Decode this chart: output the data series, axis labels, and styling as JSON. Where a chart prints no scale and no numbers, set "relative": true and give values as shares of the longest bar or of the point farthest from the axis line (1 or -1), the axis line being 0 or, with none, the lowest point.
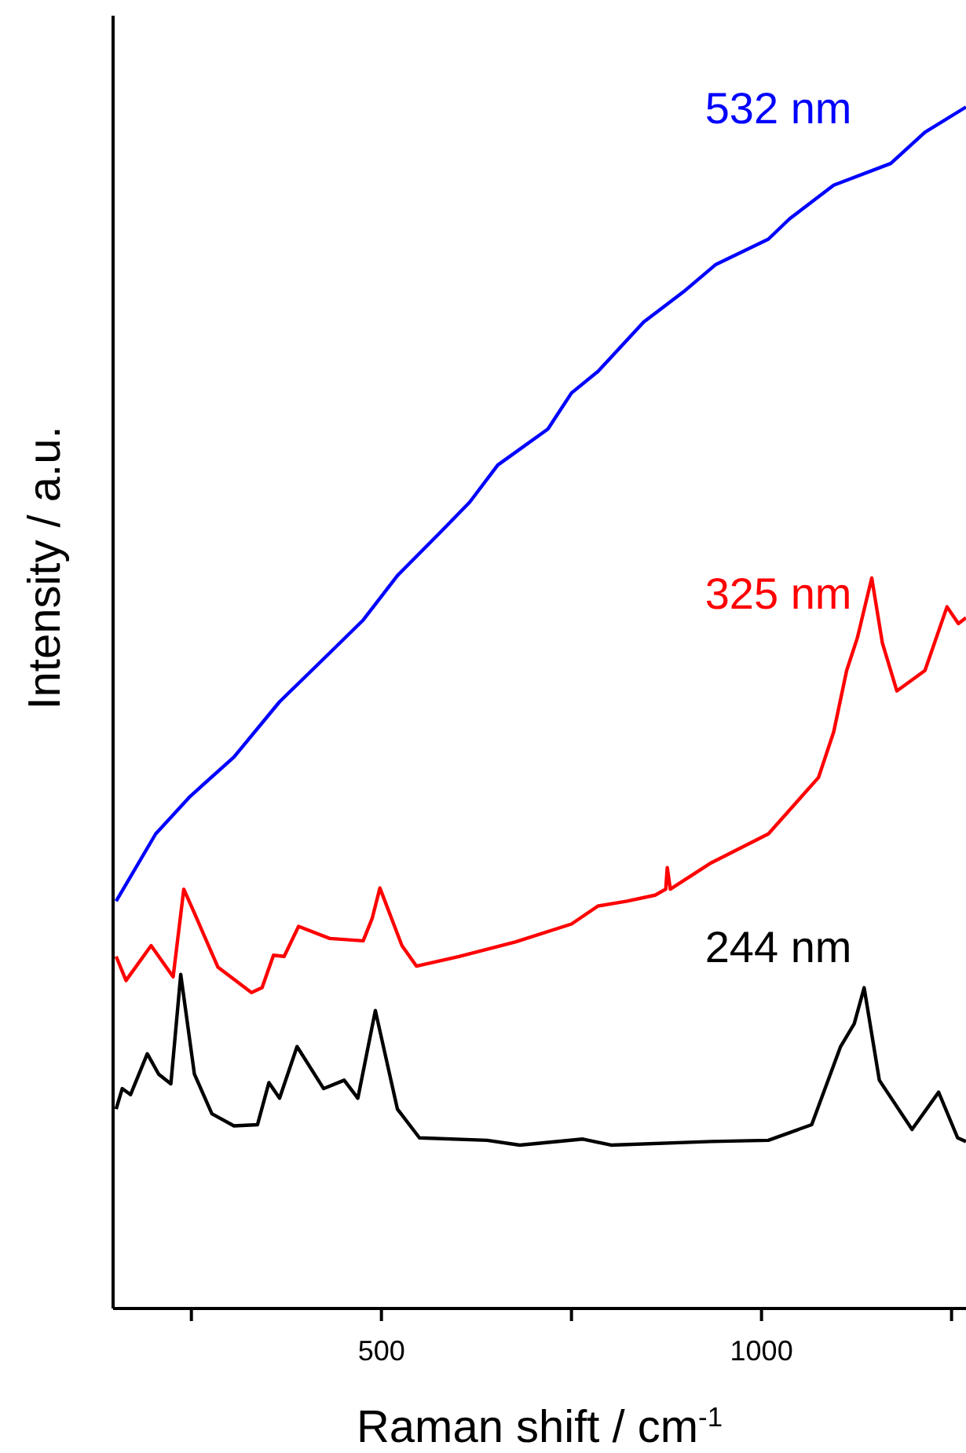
{
  "chart_data": {
    "type": "line",
    "relative": true,
    "xlabel": "Raman shift / cm$^{-1}$",
    "ylabel": "Intensity / a.u.",
    "xlim": [
      147,
      1269
    ],
    "xticks": [
      {
        "value": 250,
        "label": null
      },
      500,
      {
        "value": 750,
        "label": null
      },
      1000,
      {
        "value": 1250,
        "label": null
      }
    ],
    "series": [
      {
        "name": "532 nm",
        "color": "#0000ff",
        "x": [
          151,
          203,
          248,
          306,
          366,
          418,
          476,
          521,
          579,
          616,
          653,
          719,
          750,
          785,
          845,
          897,
          940,
          1009,
          1037,
          1095,
          1170,
          1215,
          1269
        ],
        "values": [
          0.339,
          0.395,
          0.426,
          0.459,
          0.505,
          0.537,
          0.573,
          0.61,
          0.647,
          0.671,
          0.702,
          0.732,
          0.762,
          0.78,
          0.821,
          0.846,
          0.869,
          0.89,
          0.907,
          0.935,
          0.953,
          0.979,
          1.0
        ]
      },
      {
        "name": "325 nm",
        "color": "#ff0000",
        "x": [
          151,
          164,
          197,
          226,
          240,
          254,
          285,
          329,
          343,
          358,
          372,
          391,
          432,
          476,
          488,
          498,
          527,
          546,
          602,
          676,
          750,
          785,
          823,
          860,
          874,
          876,
          880,
          934,
          1009,
          1075,
          1095,
          1112,
          1126,
          1145,
          1159,
          1178,
          1215,
          1244,
          1259,
          1269
        ],
        "values": [
          0.293,
          0.273,
          0.302,
          0.276,
          0.349,
          0.329,
          0.284,
          0.263,
          0.267,
          0.294,
          0.293,
          0.318,
          0.308,
          0.306,
          0.325,
          0.35,
          0.302,
          0.285,
          0.293,
          0.305,
          0.32,
          0.335,
          0.339,
          0.344,
          0.349,
          0.367,
          0.349,
          0.371,
          0.395,
          0.442,
          0.48,
          0.531,
          0.558,
          0.608,
          0.554,
          0.514,
          0.531,
          0.584,
          0.57,
          0.575
        ]
      },
      {
        "name": "244 nm",
        "color": "#000000",
        "x": [
          151,
          159,
          170,
          192,
          207,
          223,
          236,
          254,
          277,
          306,
          337,
          352,
          366,
          389,
          424,
          451,
          469,
          492,
          521,
          550,
          639,
          682,
          765,
          802,
          934,
          1009,
          1066,
          1104,
          1122,
          1135,
          1155,
          1198,
          1233,
          1258,
          1269
        ],
        "values": [
          0.166,
          0.183,
          0.178,
          0.212,
          0.195,
          0.187,
          0.278,
          0.195,
          0.162,
          0.152,
          0.153,
          0.188,
          0.175,
          0.218,
          0.183,
          0.19,
          0.175,
          0.248,
          0.166,
          0.142,
          0.14,
          0.136,
          0.141,
          0.136,
          0.139,
          0.14,
          0.153,
          0.218,
          0.237,
          0.267,
          0.19,
          0.149,
          0.18,
          0.142,
          0.139
        ]
      }
    ]
  }
}
